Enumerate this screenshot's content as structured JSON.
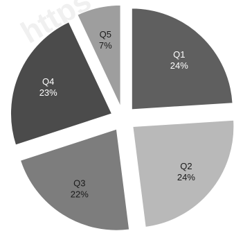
{
  "chart_data": {
    "type": "pie",
    "exploded": true,
    "start_angle_deg": 0,
    "direction": "clockwise",
    "slices": [
      {
        "label": "Q1",
        "value": 24,
        "value_text": "24%",
        "color": "#5f5f5f",
        "text_color": "#ffffff"
      },
      {
        "label": "Q2",
        "value": 24,
        "value_text": "24%",
        "color": "#b9b9b9",
        "text_color": "#1a1a1a"
      },
      {
        "label": "Q3",
        "value": 22,
        "value_text": "22%",
        "color": "#7d7d7d",
        "text_color": "#1a1a1a"
      },
      {
        "label": "Q4",
        "value": 23,
        "value_text": "23%",
        "color": "#4b4b4b",
        "text_color": "#ffffff"
      },
      {
        "label": "Q5",
        "value": 7,
        "value_text": "7%",
        "color": "#9e9e9e",
        "text_color": "#1a1a1a"
      }
    ]
  },
  "watermark": {
    "text": "https",
    "color": "#f0f0f0"
  }
}
